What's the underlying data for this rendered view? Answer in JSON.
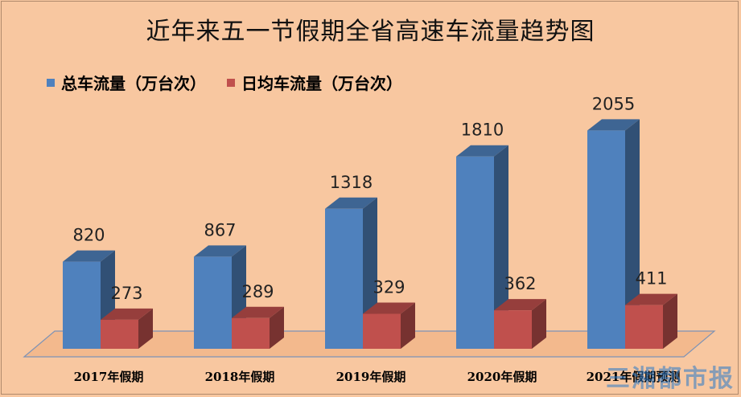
{
  "chart_data": {
    "type": "bar",
    "title": "近年来五一节假期全省高速车流量趋势图",
    "categories": [
      "2017年假期",
      "2018年假期",
      "2019年假期",
      "2020年假期",
      "2021年假期预测"
    ],
    "series": [
      {
        "name": "总车流量（万台次）",
        "values": [
          820,
          867,
          1318,
          1810,
          2055
        ],
        "color": "#4f81bd"
      },
      {
        "name": "日均车流量（万台次）",
        "values": [
          273,
          289,
          329,
          362,
          411
        ],
        "color": "#c0504d"
      }
    ],
    "legend_position": "top-left",
    "grid": false
  },
  "watermark": "三湘都市报"
}
